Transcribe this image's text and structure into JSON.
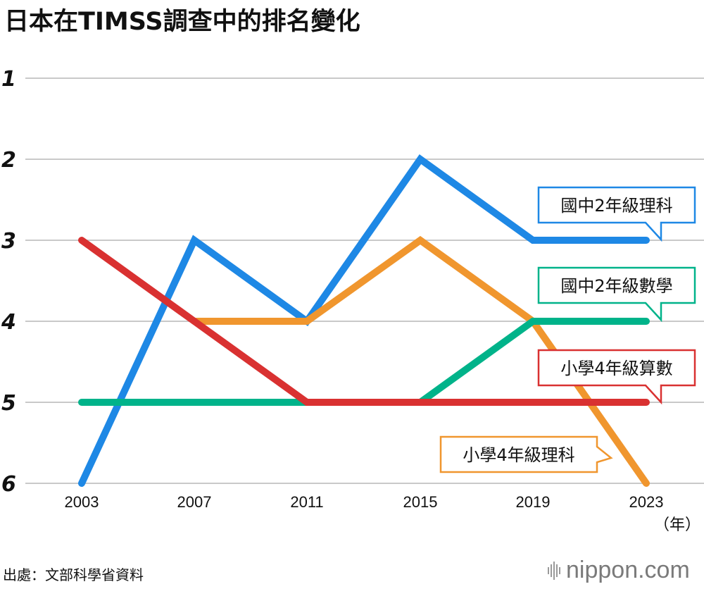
{
  "title": "日本在TIMSS調查中的排名變化",
  "source": "出處：文部科學省資料",
  "brand": "nippon.com",
  "chart_data": {
    "type": "line",
    "title": "日本在TIMSS調查中的排名變化",
    "xlabel": "",
    "ylabel": "",
    "x_unit": "（年）",
    "categories": [
      "2003",
      "2007",
      "2011",
      "2015",
      "2019",
      "2023"
    ],
    "y_ticks": [
      "1",
      "2",
      "3",
      "4",
      "5",
      "6"
    ],
    "ylim": [
      1,
      6
    ],
    "y_inverted": true,
    "grid": true,
    "series": [
      {
        "name": "國中2年級理科",
        "color": "#1e88e5",
        "values": [
          6,
          3,
          4,
          2,
          3,
          3
        ]
      },
      {
        "name": "國中2年級數學",
        "color": "#00b38a",
        "values": [
          5,
          5,
          5,
          5,
          4,
          4
        ]
      },
      {
        "name": "小學4年級算數",
        "color": "#d93131",
        "values": [
          3,
          4,
          5,
          5,
          5,
          5
        ]
      },
      {
        "name": "小學4年級理科",
        "color": "#f0962e",
        "values": [
          null,
          4,
          4,
          3,
          4,
          6
        ]
      }
    ]
  }
}
